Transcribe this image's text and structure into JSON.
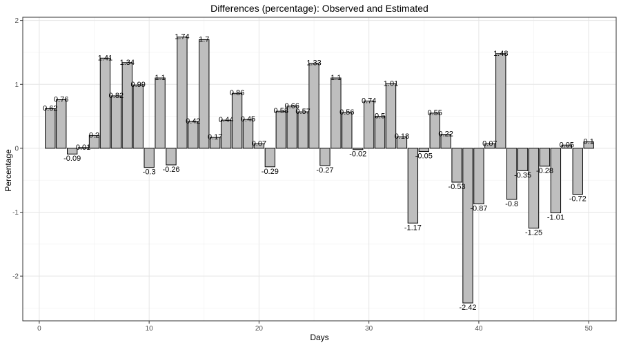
{
  "chart_data": {
    "type": "bar",
    "title": "Differences (percentage): Observed and Estimated",
    "xlabel": "Days",
    "ylabel": "Percentage",
    "xlim": [
      -1.5,
      52.5
    ],
    "ylim": [
      -2.7,
      2.05
    ],
    "x_ticks": [
      0,
      10,
      20,
      30,
      40,
      50
    ],
    "y_ticks": [
      -2,
      -1,
      0,
      1,
      2
    ],
    "grid": true,
    "bar_fill": "#bebebe",
    "bar_stroke": "#000000",
    "x": [
      1,
      2,
      3,
      4,
      5,
      6,
      7,
      8,
      9,
      10,
      11,
      12,
      13,
      14,
      15,
      16,
      17,
      18,
      19,
      20,
      21,
      22,
      23,
      24,
      25,
      26,
      27,
      28,
      29,
      30,
      31,
      32,
      33,
      34,
      35,
      36,
      37,
      38,
      39,
      40,
      41,
      42,
      43,
      44,
      45,
      46,
      47,
      48,
      49,
      50
    ],
    "values": [
      0.62,
      0.76,
      -0.09,
      0.01,
      0.2,
      1.41,
      0.82,
      1.34,
      0.99,
      -0.3,
      1.1,
      -0.26,
      1.74,
      0.42,
      1.7,
      0.17,
      0.44,
      0.86,
      0.45,
      0.07,
      -0.29,
      0.58,
      0.66,
      0.57,
      1.33,
      -0.27,
      1.1,
      0.56,
      -0.02,
      0.74,
      0.5,
      1.01,
      0.18,
      -1.17,
      -0.05,
      0.55,
      0.22,
      -0.53,
      -2.42,
      -0.87,
      0.07,
      1.48,
      -0.8,
      -0.35,
      -1.25,
      -0.28,
      -1.01,
      0.05,
      -0.72,
      0.1
    ],
    "labels": [
      "0.62",
      "0.76",
      "-0.09",
      "0.01",
      "0.2",
      "1.41",
      "0.82",
      "1.34",
      "0.99",
      "-0.3",
      "1.1",
      "-0.26",
      "1.74",
      "0.42",
      "1.7",
      "0.17",
      "0.44",
      "0.86",
      "0.45",
      "0.07",
      "-0.29",
      "0.58",
      "0.66",
      "0.57",
      "1.33",
      "-0.27",
      "1.1",
      "0.56",
      "-0.02",
      "0.74",
      "0.5",
      "1.01",
      "0.18",
      "-1.17",
      "-0.05",
      "0.55",
      "0.22",
      "-0.53",
      "-2.42",
      "-0.87",
      "0.07",
      "1.48",
      "-0.8",
      "-0.35",
      "-1.25",
      "-0.28",
      "-1.01",
      "0.05",
      "-0.72",
      "0.1"
    ]
  }
}
